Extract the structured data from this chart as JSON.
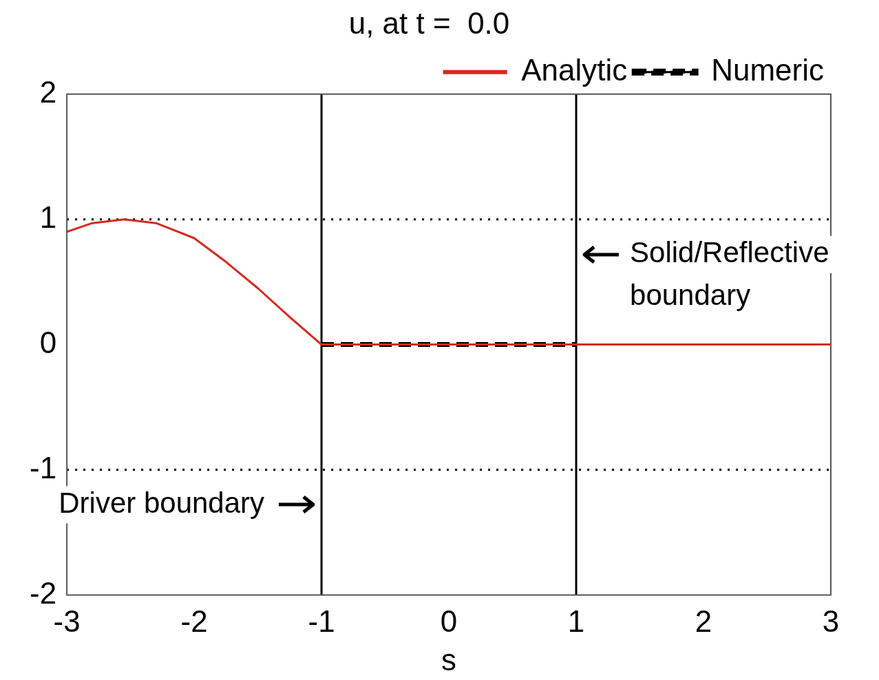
{
  "chart_data": {
    "type": "line",
    "title": "u, at t =  0.0",
    "xlabel": "s",
    "xlim": [
      -3,
      3
    ],
    "xticks": [
      -3,
      -2,
      -1,
      0,
      1,
      2,
      3
    ],
    "ylim": [
      -2,
      2
    ],
    "yticks": [
      -2,
      -1,
      0,
      1,
      2
    ],
    "grid": false,
    "legend": "top right",
    "marker": "none",
    "series": [
      {
        "name": "Analytic",
        "color": "#d42a1e",
        "line_style": "solid",
        "x": [
          -3,
          -2.8,
          -2.55,
          -2.3,
          -2,
          -1.75,
          -1.5,
          -1.25,
          -1,
          0,
          1,
          2,
          3
        ],
        "values": [
          0.9,
          0.97,
          1.0,
          0.97,
          0.85,
          0.66,
          0.45,
          0.22,
          0,
          0,
          0,
          0,
          0
        ]
      },
      {
        "name": "Numeric",
        "color": "#000000",
        "line_style": "dashed",
        "x": [
          -1,
          1
        ],
        "values": [
          0,
          0
        ]
      }
    ],
    "ref_lines": [
      {
        "axis": "x",
        "value": -1,
        "color": "#000000",
        "line_style": "solid",
        "label": "Driver boundary"
      },
      {
        "axis": "x",
        "value": 1,
        "color": "#000000",
        "line_style": "solid",
        "label": "Solid/Reflective boundary"
      },
      {
        "axis": "y",
        "value": 1,
        "color": "#000000",
        "line_style": "dotted"
      },
      {
        "axis": "y",
        "value": -1,
        "color": "#000000",
        "line_style": "dotted"
      }
    ]
  }
}
